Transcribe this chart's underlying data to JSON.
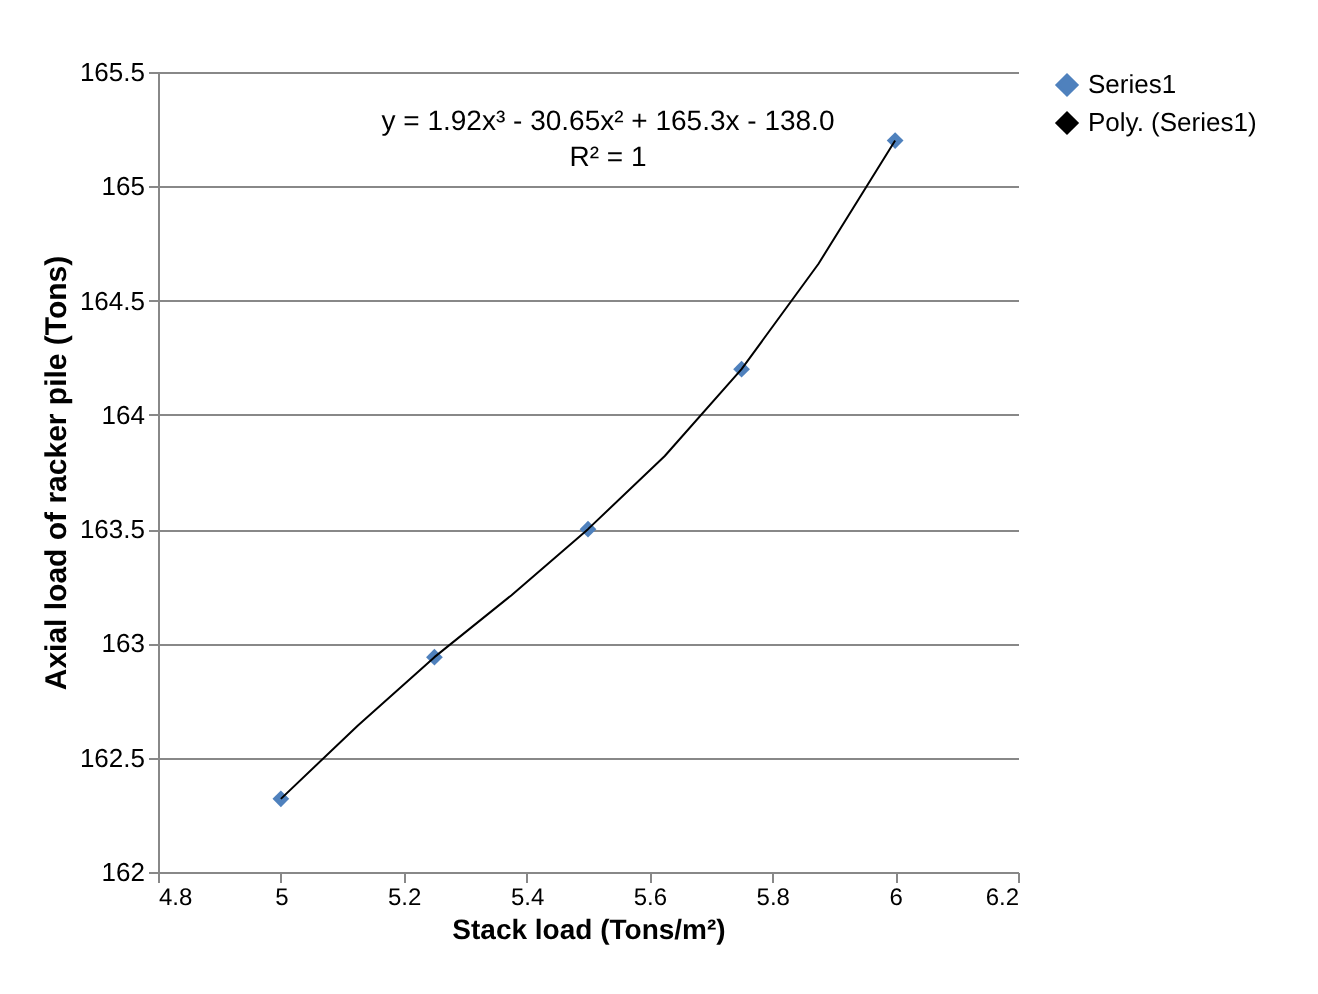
{
  "chart_data": {
    "type": "scatter",
    "xlabel": "Stack load (Tons/m²)",
    "ylabel": "Axial load of racker pile (Tons)",
    "annotations": [
      "y = 1.92x³ - 30.65x² + 165.3x - 138.0",
      "R² = 1"
    ],
    "series": [
      {
        "name": "Series1",
        "color": "#4f81bd",
        "marker": "diamond",
        "x": [
          5,
          5.25,
          5.5,
          5.75,
          6
        ],
        "values": [
          162.32,
          162.94,
          163.5,
          164.2,
          165.2
        ]
      },
      {
        "name": "Poly. (Series1)",
        "type": "line",
        "color": "#000000",
        "marker": "none",
        "x": [
          5,
          5.125,
          5.25,
          5.375,
          5.5,
          5.625,
          5.75,
          5.875,
          6
        ],
        "values": [
          162.32,
          162.64,
          162.94,
          163.21,
          163.5,
          163.82,
          164.2,
          164.66,
          165.2
        ]
      }
    ],
    "xlim": [
      4.8,
      6.2
    ],
    "xticks": [
      4.8,
      5,
      5.2,
      5.4,
      5.6,
      5.8,
      6,
      6.2
    ],
    "ylim": [
      162,
      165.5
    ],
    "yticks": [
      162,
      162.5,
      163,
      163.5,
      164,
      164.5,
      165,
      165.5
    ],
    "grid": "y",
    "legend": "right"
  }
}
